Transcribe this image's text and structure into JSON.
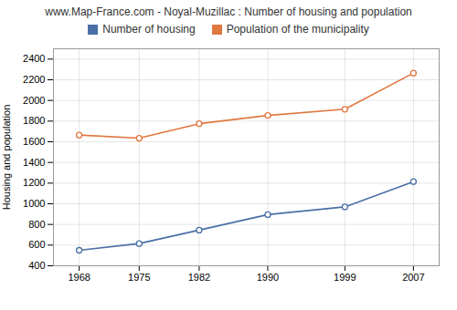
{
  "chart_data": {
    "type": "line",
    "title": "www.Map-France.com - Noyal-Muzillac : Number of housing and population",
    "ylabel": "Housing and population",
    "x": [
      1968,
      1975,
      1982,
      1990,
      1999,
      2007
    ],
    "series": [
      {
        "name": "Number of housing",
        "color": "#4a6fa5",
        "marker": "circle",
        "values": [
          550,
          615,
          745,
          895,
          970,
          1215
        ]
      },
      {
        "name": "Population of the municipality",
        "color": "#e07840",
        "marker": "circle",
        "values": [
          1665,
          1635,
          1775,
          1855,
          1915,
          2265
        ]
      }
    ],
    "xlim": [
      1965,
      2010
    ],
    "xticks": [
      1968,
      1975,
      1982,
      1990,
      1999,
      2007
    ],
    "ylim": [
      400,
      2500
    ],
    "yticks": [
      400,
      600,
      800,
      1000,
      1200,
      1400,
      1600,
      1800,
      2000,
      2200,
      2400
    ],
    "grid": true,
    "legend": "top"
  }
}
